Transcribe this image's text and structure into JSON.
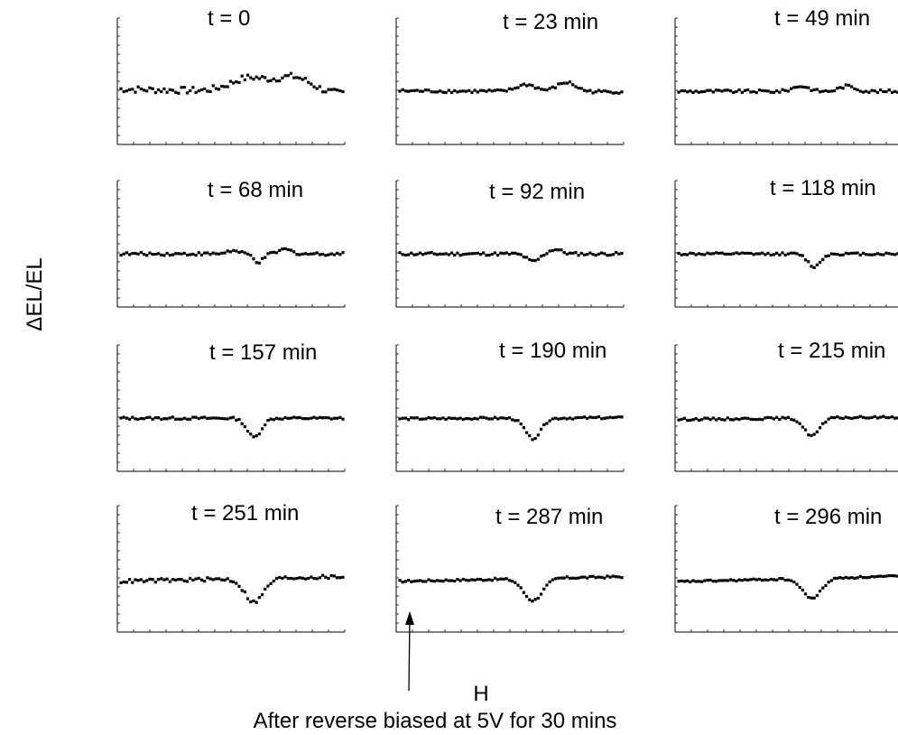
{
  "figure": {
    "ylabel": "ΔEL/EL",
    "xlabel": "H",
    "caption": "After reverse biased at 5V for 30 mins"
  },
  "chart_data": [
    {
      "type": "scatter",
      "title": "t = 0",
      "baseline": 0,
      "dips": [
        {
          "center": 0.58,
          "width": 0.12,
          "depth": -0.9
        },
        {
          "center": 0.78,
          "width": 0.11,
          "depth": -1.0
        }
      ],
      "tilt": -0.5,
      "noise": 0.22
    },
    {
      "type": "scatter",
      "title": "t = 23 min",
      "baseline": 0,
      "dips": [
        {
          "center": 0.57,
          "width": 0.06,
          "depth": -0.45
        },
        {
          "center": 0.75,
          "width": 0.06,
          "depth": -0.6
        }
      ],
      "tilt": -0.1,
      "noise": 0.1
    },
    {
      "type": "scatter",
      "title": "t = 49 min",
      "baseline": 0,
      "dips": [
        {
          "center": 0.55,
          "width": 0.05,
          "depth": -0.35
        },
        {
          "center": 0.76,
          "width": 0.05,
          "depth": -0.35
        }
      ],
      "tilt": 0,
      "noise": 0.1
    },
    {
      "type": "scatter",
      "title": "t = 68 min",
      "baseline": 0,
      "dips": [
        {
          "center": 0.5,
          "width": 0.04,
          "depth": -0.2
        },
        {
          "center": 0.62,
          "width": 0.03,
          "depth": 0.55
        },
        {
          "center": 0.74,
          "width": 0.04,
          "depth": -0.3
        }
      ],
      "tilt": 0,
      "noise": 0.1
    },
    {
      "type": "scatter",
      "title": "t = 92 min",
      "baseline": 0,
      "dips": [
        {
          "center": 0.6,
          "width": 0.04,
          "depth": 0.5
        },
        {
          "center": 0.7,
          "width": 0.04,
          "depth": -0.3
        }
      ],
      "tilt": 0,
      "noise": 0.1
    },
    {
      "type": "scatter",
      "title": "t = 118 min",
      "baseline": 0,
      "dips": [
        {
          "center": 0.61,
          "width": 0.04,
          "depth": 0.85
        }
      ],
      "tilt": 0,
      "noise": 0.08
    },
    {
      "type": "scatter",
      "title": "t = 157 min",
      "baseline": 0,
      "dips": [
        {
          "center": 0.6,
          "width": 0.045,
          "depth": 1.25
        }
      ],
      "tilt": 0,
      "noise": 0.08
    },
    {
      "type": "scatter",
      "title": "t = 190 min",
      "baseline": 0,
      "dips": [
        {
          "center": 0.6,
          "width": 0.05,
          "depth": 1.35
        }
      ],
      "tilt": 0.1,
      "noise": 0.07
    },
    {
      "type": "scatter",
      "title": "t = 215 min",
      "baseline": 0,
      "dips": [
        {
          "center": 0.6,
          "width": 0.05,
          "depth": 1.15
        }
      ],
      "tilt": 0.25,
      "noise": 0.07
    },
    {
      "type": "scatter",
      "title": "t = 251 min",
      "baseline": 0,
      "dips": [
        {
          "center": 0.6,
          "width": 0.06,
          "depth": 1.55
        }
      ],
      "tilt": 0.5,
      "noise": 0.12
    },
    {
      "type": "scatter",
      "title": "t = 287 min",
      "baseline": 0,
      "dips": [
        {
          "center": 0.6,
          "width": 0.06,
          "depth": 1.45
        }
      ],
      "tilt": 0.5,
      "noise": 0.07
    },
    {
      "type": "scatter",
      "title": "t = 296 min",
      "baseline": 0,
      "dips": [
        {
          "center": 0.6,
          "width": 0.06,
          "depth": 1.3
        }
      ],
      "tilt": 0.6,
      "noise": 0.06
    }
  ]
}
